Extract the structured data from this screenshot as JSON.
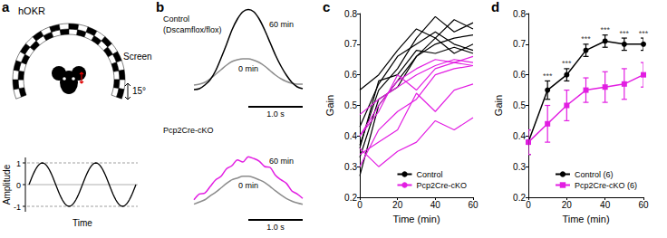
{
  "panel_labels": [
    "a",
    "b",
    "c",
    "d"
  ],
  "diagram": {
    "title": "hOKR",
    "screen": "Screen",
    "angle": "15°",
    "wave": {
      "ylabel": "Amplitude",
      "xlabel": "Time",
      "yticks": [
        -1,
        0,
        1
      ]
    }
  },
  "chart_data": [
    {
      "type": "line",
      "title": [
        "Control",
        "(Dscamflox/flox)"
      ],
      "x": [
        0,
        0.1,
        0.2,
        0.3,
        0.4,
        0.5,
        0.6,
        0.7,
        0.8,
        0.9,
        1.0,
        1.1,
        1.2,
        1.3,
        1.4,
        1.5,
        1.6,
        1.7,
        1.8,
        1.9,
        2.0
      ],
      "xlim": [
        0,
        2.0
      ],
      "ylim": [
        -1,
        1
      ],
      "tick_labels": false,
      "scale_bar": {
        "value": 1.0,
        "label": "1.0 s"
      },
      "series": [
        {
          "name": "0 min",
          "color": "#8c8c8c",
          "values": [
            -0.72,
            -0.7,
            -0.66,
            -0.58,
            -0.48,
            -0.38,
            -0.28,
            -0.2,
            -0.16,
            -0.14,
            -0.14,
            -0.17,
            -0.22,
            -0.3,
            -0.4,
            -0.5,
            -0.58,
            -0.64,
            -0.68,
            -0.7,
            -0.7
          ]
        },
        {
          "name": "60 min",
          "color": "#000000",
          "values": [
            -0.82,
            -0.8,
            -0.72,
            -0.6,
            -0.4,
            -0.12,
            0.18,
            0.5,
            0.74,
            0.9,
            0.95,
            0.9,
            0.74,
            0.5,
            0.22,
            -0.06,
            -0.3,
            -0.5,
            -0.66,
            -0.76,
            -0.8
          ]
        }
      ]
    },
    {
      "type": "line",
      "title": [
        "Pcp2Cre-cKO"
      ],
      "x": [
        0,
        0.1,
        0.2,
        0.3,
        0.4,
        0.5,
        0.6,
        0.7,
        0.8,
        0.9,
        1.0,
        1.1,
        1.2,
        1.3,
        1.4,
        1.5,
        1.6,
        1.7,
        1.8,
        1.9,
        2.0
      ],
      "xlim": [
        0,
        2.0
      ],
      "ylim": [
        -1,
        1
      ],
      "tick_labels": false,
      "scale_bar": {
        "value": 1.0,
        "label": "1.0 s"
      },
      "series": [
        {
          "name": "0 min",
          "color": "#8c8c8c",
          "values": [
            -0.85,
            -0.8,
            -0.75,
            -0.66,
            -0.58,
            -0.48,
            -0.38,
            -0.3,
            -0.26,
            -0.22,
            -0.22,
            -0.25,
            -0.3,
            -0.36,
            -0.45,
            -0.55,
            -0.64,
            -0.72,
            -0.78,
            -0.82,
            -0.85
          ]
        },
        {
          "name": "60 min",
          "color": "#e21ee2",
          "values": [
            -0.75,
            -0.62,
            -0.6,
            -0.45,
            -0.3,
            -0.22,
            -0.05,
            0.02,
            0.15,
            0.1,
            0.22,
            0.18,
            0.12,
            0.0,
            -0.02,
            -0.2,
            -0.3,
            -0.38,
            -0.55,
            -0.62,
            -0.72
          ]
        }
      ]
    },
    {
      "type": "line",
      "x": [
        0,
        10,
        20,
        30,
        40,
        50,
        60
      ],
      "xlim": [
        0,
        60
      ],
      "xticks": [
        0,
        20,
        40,
        60
      ],
      "ylim": [
        0.2,
        0.8
      ],
      "yticks": [
        0.2,
        0.3,
        0.4,
        0.5,
        0.6,
        0.7,
        0.8
      ],
      "x_label": "Time (min)",
      "y_label": "Gain",
      "legend": "lower right",
      "grid": false,
      "series": [
        {
          "name": "Control",
          "color": "#000000",
          "values": [
            0.37,
            0.55,
            0.62,
            0.72,
            0.79,
            0.74,
            0.77
          ]
        },
        {
          "name": "Control",
          "color": "#000000",
          "values": [
            0.55,
            0.6,
            0.68,
            0.75,
            0.72,
            0.78,
            0.75
          ]
        },
        {
          "name": "Control",
          "color": "#000000",
          "values": [
            0.27,
            0.5,
            0.58,
            0.66,
            0.7,
            0.72,
            0.73
          ]
        },
        {
          "name": "Control",
          "color": "#000000",
          "values": [
            0.43,
            0.57,
            0.66,
            0.7,
            0.74,
            0.7,
            0.68
          ]
        },
        {
          "name": "Control",
          "color": "#000000",
          "values": [
            0.33,
            0.52,
            0.56,
            0.66,
            0.72,
            0.67,
            0.7
          ]
        },
        {
          "name": "Control",
          "color": "#000000",
          "values": [
            0.36,
            0.58,
            0.6,
            0.68,
            0.67,
            0.69,
            0.67
          ]
        },
        {
          "name": "Pcp2Cre-cKO",
          "color": "#e21ee2",
          "values": [
            0.47,
            0.52,
            0.56,
            0.6,
            0.63,
            0.65,
            0.64
          ]
        },
        {
          "name": "Pcp2Cre-cKO",
          "color": "#e21ee2",
          "values": [
            0.4,
            0.5,
            0.58,
            0.62,
            0.65,
            0.64,
            0.66
          ]
        },
        {
          "name": "Pcp2Cre-cKO",
          "color": "#e21ee2",
          "values": [
            0.3,
            0.42,
            0.48,
            0.52,
            0.6,
            0.62,
            0.63
          ]
        },
        {
          "name": "Pcp2Cre-cKO",
          "color": "#e21ee2",
          "values": [
            0.34,
            0.38,
            0.42,
            0.54,
            0.48,
            0.55,
            0.57
          ]
        },
        {
          "name": "Pcp2Cre-cKO",
          "color": "#e21ee2",
          "values": [
            0.36,
            0.3,
            0.35,
            0.38,
            0.45,
            0.42,
            0.46
          ]
        },
        {
          "name": "Pcp2Cre-cKO",
          "color": "#e21ee2",
          "values": [
            0.4,
            0.48,
            0.6,
            0.55,
            0.62,
            0.64,
            0.63
          ]
        }
      ]
    },
    {
      "type": "line",
      "x": [
        0,
        10,
        20,
        30,
        40,
        50,
        60
      ],
      "xlim": [
        0,
        60
      ],
      "xticks": [
        0,
        20,
        40,
        60
      ],
      "ylim": [
        0.2,
        0.8
      ],
      "yticks": [
        0.2,
        0.3,
        0.4,
        0.5,
        0.6,
        0.7,
        0.8
      ],
      "x_label": "Time (min)",
      "y_label": "Gain",
      "legend": "lower right",
      "grid": false,
      "series": [
        {
          "name": "Control (6)",
          "color": "#000000",
          "marker": "circle",
          "values": [
            0.38,
            0.55,
            0.6,
            0.68,
            0.71,
            0.7,
            0.7
          ],
          "errors": [
            0.04,
            0.03,
            0.02,
            0.02,
            0.02,
            0.02,
            0.02
          ]
        },
        {
          "name": "Pcp2Cre-cKO (6)",
          "color": "#e21ee2",
          "marker": "square",
          "values": [
            0.38,
            0.44,
            0.5,
            0.55,
            0.56,
            0.57,
            0.6
          ],
          "errors": [
            0.04,
            0.06,
            0.05,
            0.04,
            0.05,
            0.05,
            0.04
          ]
        }
      ],
      "annotations": [
        {
          "x": 10,
          "text": "***"
        },
        {
          "x": 20,
          "text": "***"
        },
        {
          "x": 30,
          "text": "***"
        },
        {
          "x": 40,
          "text": "***"
        },
        {
          "x": 50,
          "text": "***"
        },
        {
          "x": 60,
          "text": "***"
        }
      ]
    }
  ]
}
